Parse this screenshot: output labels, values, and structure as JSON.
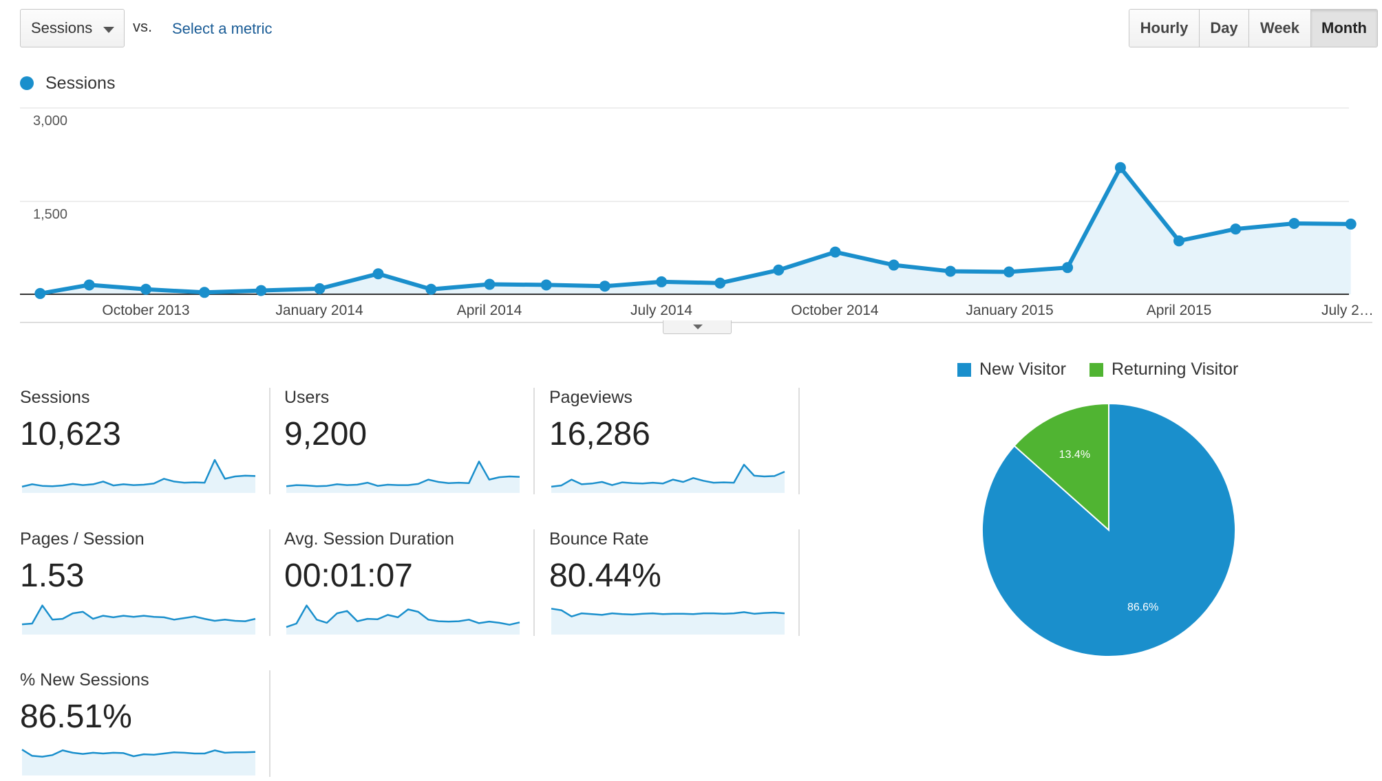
{
  "controls": {
    "metric_select": "Sessions",
    "vs_label": "vs.",
    "select_metric_link": "Select a metric",
    "periods": [
      "Hourly",
      "Day",
      "Week",
      "Month"
    ],
    "active_period": "Month"
  },
  "colors": {
    "series": "#1a8fcc",
    "series_fill": "#e6f3fa",
    "new_visitor": "#1a8fcc",
    "returning_visitor": "#50b432"
  },
  "chart_data": [
    {
      "type": "area",
      "series": [
        {
          "name": "Sessions",
          "values": [
            12,
            150,
            80,
            30,
            60,
            90,
            330,
            80,
            160,
            150,
            130,
            200,
            180,
            390,
            680,
            470,
            370,
            360,
            430,
            2040,
            860,
            1050,
            1140,
            1130
          ]
        }
      ],
      "x": [
        "2013-08-06",
        "2013-09-01",
        "2013-10-01",
        "2013-11-01",
        "2013-12-01",
        "2014-01-01",
        "2014-02-01",
        "2014-03-01",
        "2014-04-01",
        "2014-05-01",
        "2014-06-01",
        "2014-07-01",
        "2014-08-01",
        "2014-09-01",
        "2014-10-01",
        "2014-11-01",
        "2014-12-01",
        "2015-01-01",
        "2015-02-01",
        "2015-03-01",
        "2015-04-01",
        "2015-05-01",
        "2015-06-01",
        "2015-07-01"
      ],
      "x_tick_labels": [
        "October 2013",
        "January 2014",
        "April 2014",
        "July 2014",
        "October 2014",
        "January 2015",
        "April 2015",
        "July 2…"
      ],
      "y_tick_labels": [
        "1,500",
        "3,000"
      ],
      "ylim": [
        0,
        3000
      ],
      "legend": "top-left",
      "grid": true
    },
    {
      "type": "pie",
      "categories": [
        "New Visitor",
        "Returning Visitor"
      ],
      "values": [
        86.6,
        13.4
      ],
      "value_labels": [
        "86.6%",
        "13.4%"
      ],
      "legend": "top"
    }
  ],
  "metrics": [
    {
      "label": "Sessions",
      "value": "10,623",
      "spark": [
        2,
        8,
        4,
        3,
        5,
        9,
        6,
        8,
        15,
        5,
        8,
        6,
        7,
        10,
        22,
        15,
        12,
        13,
        12,
        70,
        22,
        28,
        30,
        29
      ]
    },
    {
      "label": "Users",
      "value": "9,200",
      "spark": [
        3,
        6,
        5,
        3,
        4,
        8,
        6,
        7,
        12,
        4,
        7,
        6,
        6,
        9,
        20,
        14,
        11,
        12,
        11,
        66,
        20,
        26,
        28,
        27
      ]
    },
    {
      "label": "Pageviews",
      "value": "16,286",
      "spark": [
        2,
        5,
        20,
        8,
        10,
        14,
        6,
        13,
        11,
        10,
        12,
        10,
        20,
        14,
        24,
        17,
        12,
        13,
        12,
        58,
        30,
        28,
        29,
        40
      ]
    },
    {
      "label": "Pages / Session",
      "value": "1.53",
      "spark": [
        12,
        14,
        60,
        24,
        26,
        40,
        44,
        26,
        34,
        30,
        34,
        31,
        34,
        31,
        30,
        24,
        28,
        32,
        26,
        21,
        24,
        21,
        20,
        26
      ]
    },
    {
      "label": "Avg. Session Duration",
      "value": "00:01:07",
      "spark": [
        5,
        14,
        60,
        24,
        16,
        40,
        46,
        20,
        26,
        25,
        36,
        30,
        50,
        44,
        24,
        20,
        19,
        20,
        24,
        15,
        19,
        16,
        11,
        17
      ]
    },
    {
      "label": "Bounce Rate",
      "value": "80.44%",
      "spark": [
        52,
        48,
        32,
        40,
        38,
        36,
        40,
        38,
        37,
        39,
        40,
        38,
        39,
        39,
        38,
        40,
        40,
        39,
        40,
        43,
        39,
        41,
        42,
        40
      ]
    },
    {
      "label": "% New Sessions",
      "value": "86.51%",
      "spark": [
        52,
        36,
        34,
        38,
        50,
        44,
        41,
        44,
        42,
        44,
        43,
        35,
        40,
        39,
        42,
        45,
        44,
        42,
        42,
        50,
        44,
        45,
        45,
        46
      ]
    }
  ]
}
